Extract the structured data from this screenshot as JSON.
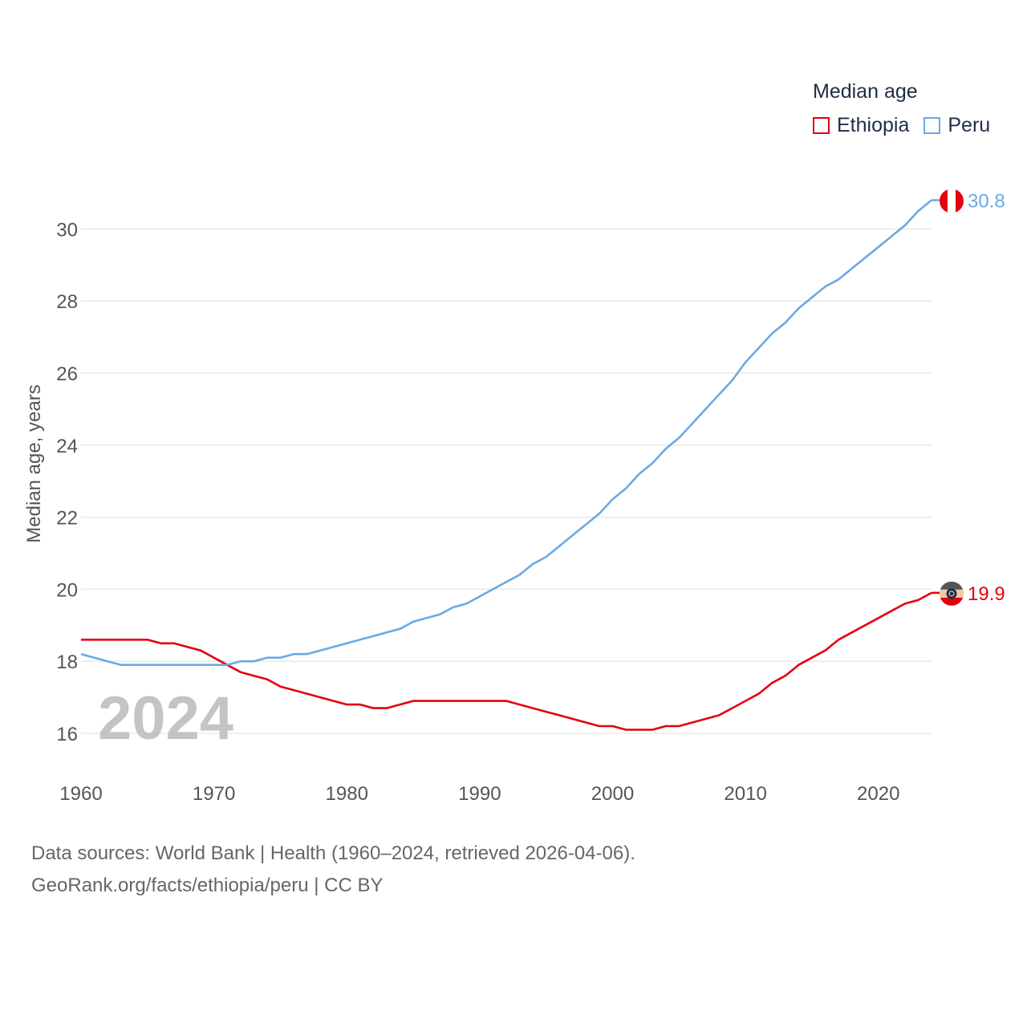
{
  "chart_data": {
    "type": "line",
    "title": "",
    "xlabel": "",
    "ylabel": "Median age, years",
    "xlim": [
      1960,
      2024
    ],
    "ylim": [
      15,
      31.5
    ],
    "x_ticks": [
      1960,
      1970,
      1980,
      1990,
      2000,
      2010,
      2020
    ],
    "y_ticks": [
      16,
      18,
      20,
      22,
      24,
      26,
      28,
      30
    ],
    "grid": true,
    "legend_title": "Median age",
    "legend_position": "top-right",
    "year_label": "2024",
    "x": [
      1960,
      1961,
      1962,
      1963,
      1964,
      1965,
      1966,
      1967,
      1968,
      1969,
      1970,
      1971,
      1972,
      1973,
      1974,
      1975,
      1976,
      1977,
      1978,
      1979,
      1980,
      1981,
      1982,
      1983,
      1984,
      1985,
      1986,
      1987,
      1988,
      1989,
      1990,
      1991,
      1992,
      1993,
      1994,
      1995,
      1996,
      1997,
      1998,
      1999,
      2000,
      2001,
      2002,
      2003,
      2004,
      2005,
      2006,
      2007,
      2008,
      2009,
      2010,
      2011,
      2012,
      2013,
      2014,
      2015,
      2016,
      2017,
      2018,
      2019,
      2020,
      2021,
      2022,
      2023,
      2024
    ],
    "series": [
      {
        "name": "Ethiopia",
        "color": "#e3000f",
        "end_label": "19.9",
        "flag": "ethiopia-flag",
        "values": [
          18.6,
          18.6,
          18.6,
          18.6,
          18.6,
          18.6,
          18.5,
          18.5,
          18.4,
          18.3,
          18.1,
          17.9,
          17.7,
          17.6,
          17.5,
          17.3,
          17.2,
          17.1,
          17.0,
          16.9,
          16.8,
          16.8,
          16.7,
          16.7,
          16.8,
          16.9,
          16.9,
          16.9,
          16.9,
          16.9,
          16.9,
          16.9,
          16.9,
          16.8,
          16.7,
          16.6,
          16.5,
          16.4,
          16.3,
          16.2,
          16.2,
          16.1,
          16.1,
          16.1,
          16.2,
          16.2,
          16.3,
          16.4,
          16.5,
          16.7,
          16.9,
          17.1,
          17.4,
          17.6,
          17.9,
          18.1,
          18.3,
          18.6,
          18.8,
          19.0,
          19.2,
          19.4,
          19.6,
          19.7,
          19.9
        ]
      },
      {
        "name": "Peru",
        "color": "#6aa9e6",
        "end_label": "30.8",
        "flag": "peru-flag",
        "values": [
          18.2,
          18.1,
          18.0,
          17.9,
          17.9,
          17.9,
          17.9,
          17.9,
          17.9,
          17.9,
          17.9,
          17.9,
          18.0,
          18.0,
          18.1,
          18.1,
          18.2,
          18.2,
          18.3,
          18.4,
          18.5,
          18.6,
          18.7,
          18.8,
          18.9,
          19.1,
          19.2,
          19.3,
          19.5,
          19.6,
          19.8,
          20.0,
          20.2,
          20.4,
          20.7,
          20.9,
          21.2,
          21.5,
          21.8,
          22.1,
          22.5,
          22.8,
          23.2,
          23.5,
          23.9,
          24.2,
          24.6,
          25.0,
          25.4,
          25.8,
          26.3,
          26.7,
          27.1,
          27.4,
          27.8,
          28.1,
          28.4,
          28.6,
          28.9,
          29.2,
          29.5,
          29.8,
          30.1,
          30.5,
          30.8
        ]
      }
    ]
  },
  "footer": {
    "line1": "Data sources: World Bank | Health (1960–2024, retrieved 2026-04-06).",
    "line2": "GeoRank.org/facts/ethiopia/peru | CC BY"
  }
}
